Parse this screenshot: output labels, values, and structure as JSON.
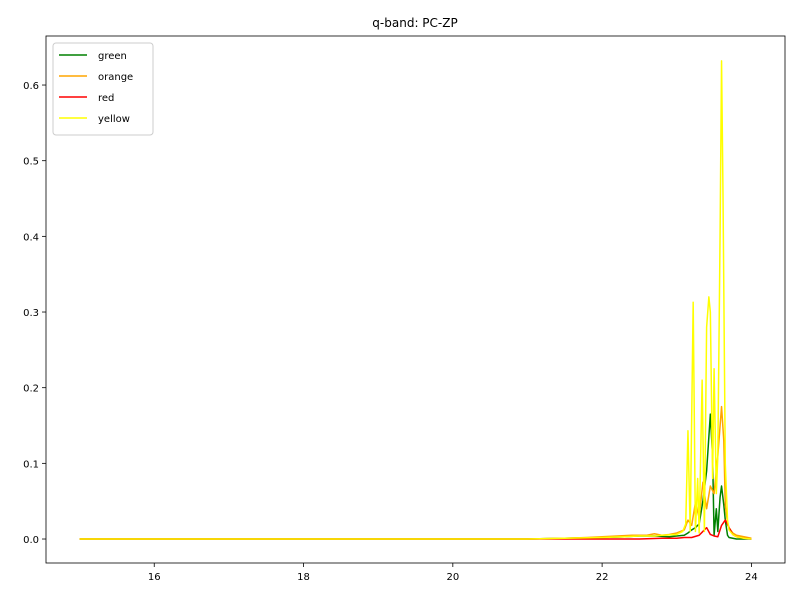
{
  "chart_data": {
    "type": "line",
    "title": "q-band: PC-ZP",
    "xlabel": "",
    "ylabel": "",
    "xlim": [
      14.55,
      24.45
    ],
    "ylim": [
      -0.0317,
      0.6648
    ],
    "xticks": [
      16,
      18,
      20,
      22,
      24
    ],
    "yticks": [
      0.0,
      0.1,
      0.2,
      0.3,
      0.4,
      0.5,
      0.6
    ],
    "xtick_labels": [
      "16",
      "18",
      "20",
      "22",
      "24"
    ],
    "ytick_labels": [
      "0.0",
      "0.1",
      "0.2",
      "0.3",
      "0.4",
      "0.5",
      "0.6"
    ],
    "legend_position": "upper-left",
    "grid": false,
    "series": [
      {
        "name": "green",
        "color": "#008000",
        "x": [
          15.0,
          16.0,
          17.0,
          18.0,
          19.0,
          20.0,
          21.0,
          21.5,
          22.0,
          22.3,
          22.5,
          22.7,
          22.9,
          23.0,
          23.1,
          23.15,
          23.2,
          23.25,
          23.3,
          23.35,
          23.4,
          23.45,
          23.48,
          23.5,
          23.53,
          23.55,
          23.58,
          23.6,
          23.63,
          23.65,
          23.68,
          23.7,
          23.75,
          23.8,
          23.9,
          24.0
        ],
        "y": [
          0.0,
          0.0,
          0.0,
          0.0,
          0.0,
          0.0,
          0.0,
          0.001,
          0.002,
          0.003,
          0.004,
          0.004,
          0.003,
          0.004,
          0.005,
          0.008,
          0.012,
          0.015,
          0.02,
          0.05,
          0.09,
          0.165,
          0.11,
          0.005,
          0.04,
          0.01,
          0.055,
          0.07,
          0.045,
          0.025,
          0.005,
          0.002,
          0.001,
          0.0,
          0.0,
          0.0
        ]
      },
      {
        "name": "orange",
        "color": "#ffa500",
        "x": [
          15.0,
          16.0,
          17.0,
          18.0,
          19.0,
          20.0,
          21.0,
          21.5,
          21.8,
          22.0,
          22.2,
          22.4,
          22.6,
          22.7,
          22.8,
          22.9,
          23.0,
          23.1,
          23.15,
          23.2,
          23.25,
          23.3,
          23.35,
          23.4,
          23.45,
          23.5,
          23.55,
          23.6,
          23.63,
          23.65,
          23.68,
          23.7,
          23.75,
          23.8,
          23.9,
          24.0
        ],
        "y": [
          0.0,
          0.0,
          0.0,
          0.0,
          0.0,
          0.0,
          0.0,
          0.001,
          0.002,
          0.003,
          0.004,
          0.005,
          0.005,
          0.007,
          0.005,
          0.006,
          0.008,
          0.012,
          0.025,
          0.018,
          0.048,
          0.028,
          0.075,
          0.04,
          0.07,
          0.06,
          0.11,
          0.175,
          0.13,
          0.045,
          0.022,
          0.015,
          0.008,
          0.005,
          0.003,
          0.001
        ]
      },
      {
        "name": "red",
        "color": "#ff0000",
        "x": [
          15.0,
          16.0,
          17.0,
          18.0,
          19.0,
          20.0,
          21.0,
          21.5,
          22.0,
          22.5,
          22.8,
          23.0,
          23.1,
          23.2,
          23.3,
          23.35,
          23.4,
          23.45,
          23.5,
          23.55,
          23.6,
          23.65,
          23.7,
          23.75,
          23.8,
          23.9,
          24.0
        ],
        "y": [
          0.0,
          0.0,
          0.0,
          0.0,
          0.0,
          0.0,
          0.0,
          0.0,
          0.0,
          0.0,
          0.001,
          0.001,
          0.002,
          0.002,
          0.005,
          0.01,
          0.015,
          0.006,
          0.004,
          0.003,
          0.018,
          0.025,
          0.015,
          0.006,
          0.003,
          0.001,
          0.0
        ]
      },
      {
        "name": "yellow",
        "color": "#ffff00",
        "x": [
          15.0,
          16.0,
          17.0,
          18.0,
          19.0,
          20.0,
          21.0,
          21.5,
          22.0,
          22.3,
          22.5,
          22.7,
          22.8,
          23.0,
          23.08,
          23.12,
          23.15,
          23.18,
          23.22,
          23.25,
          23.28,
          23.3,
          23.34,
          23.37,
          23.4,
          23.43,
          23.45,
          23.48,
          23.5,
          23.53,
          23.55,
          23.58,
          23.6,
          23.62,
          23.65,
          23.68,
          23.7,
          23.75,
          23.8,
          23.9,
          24.0
        ],
        "y": [
          0.0,
          0.0,
          0.0,
          0.0,
          0.0,
          0.0,
          0.0,
          0.001,
          0.002,
          0.003,
          0.004,
          0.004,
          0.005,
          0.006,
          0.01,
          0.02,
          0.143,
          0.01,
          0.313,
          0.01,
          0.08,
          0.008,
          0.21,
          0.01,
          0.28,
          0.32,
          0.3,
          0.08,
          0.225,
          0.06,
          0.11,
          0.4,
          0.632,
          0.45,
          0.1,
          0.025,
          0.012,
          0.006,
          0.003,
          0.001,
          0.0
        ]
      }
    ]
  }
}
